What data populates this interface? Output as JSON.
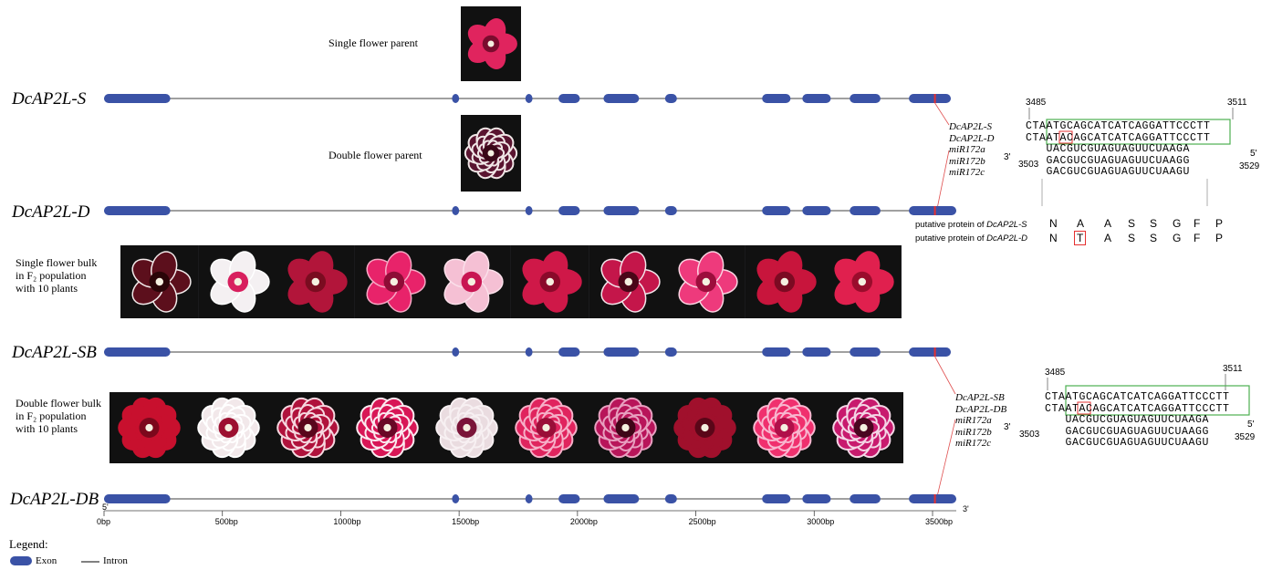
{
  "genes": [
    {
      "name": "DcAP2L-S"
    },
    {
      "name": "DcAP2L-D"
    },
    {
      "name": "DcAP2L-SB"
    },
    {
      "name": "DcAP2L-DB"
    }
  ],
  "labels": {
    "single_parent": "Single flower parent",
    "double_parent": "Double flower parent",
    "single_bulk": [
      "Single flower bulk",
      "in F₂ population",
      "with 10 plants"
    ],
    "double_bulk": [
      "Double flower bulk",
      "in F₂ population",
      "with 10 plants"
    ]
  },
  "axis": {
    "ticks": [
      "0bp",
      "500bp",
      "1000bp",
      "1500bp",
      "2000bp",
      "2500bp",
      "3000bp",
      "3500bp"
    ],
    "five_prime": "5'",
    "three_prime": "3'"
  },
  "exons_bp": [
    [
      0,
      280
    ],
    [
      1470,
      1500
    ],
    [
      1780,
      1810
    ],
    [
      1920,
      2010
    ],
    [
      2110,
      2260
    ],
    [
      2370,
      2420
    ],
    [
      2780,
      2900
    ],
    [
      2950,
      3070
    ],
    [
      3150,
      3280
    ],
    [
      3400,
      3520
    ]
  ],
  "mutation_bp": 3510,
  "alignment_top": {
    "start": "3485",
    "end": "3511",
    "mir_start": "3503",
    "mir_end": "3529",
    "three": "3'",
    "five": "5'",
    "row_names": [
      "DcAP2L-S",
      "DcAP2L-D",
      "miR172a",
      "miR172b",
      "miR172c"
    ],
    "seqs": [
      "CTAATGCAGCATCATCAGGATTCCCTT",
      "CTAATACAGCATCATCAGGATTCCCTT",
      "   UACGUCGUAGUAGUUCUAAGA",
      "   GACGUCGUAGUAGUUCUAAGG",
      "   GACGUCGUAGUAGUUCUAAGU"
    ]
  },
  "alignment_bottom": {
    "start": "3485",
    "end": "3511",
    "mir_start": "3503",
    "mir_end": "3529",
    "three": "3'",
    "five": "5'",
    "row_names": [
      "DcAP2L-SB",
      "DcAP2L-DB",
      "miR172a",
      "miR172b",
      "miR172c"
    ],
    "seqs": [
      "CTAATGCAGCATCATCAGGATTCCCTT",
      "CTAATACAGCATCATCAGGATTCCCTT",
      "   UACGUCGUAGUAGUUCUAAGA",
      "   GACGUCGUAGUAGUUCUAAGG",
      "   GACGUCGUAGUAGUUCUAAGU"
    ]
  },
  "protein": {
    "row1_label": "putative protein of ",
    "row1_gene": "DcAP2L-S",
    "row2_label": "putative protein of ",
    "row2_gene": "DcAP2L-D",
    "row1_aa": [
      "N",
      "A",
      "A",
      "S",
      "S",
      "G",
      "F",
      "P"
    ],
    "row2_aa": [
      "N",
      "T",
      "A",
      "S",
      "S",
      "G",
      "F",
      "P"
    ]
  },
  "legend": {
    "title": "Legend:",
    "exon": "Exon",
    "intron": "Intron"
  },
  "colors": {
    "exon": "#3a52a6",
    "intron": "#808080",
    "mutation": "#e53030",
    "box_green": "#4caf50",
    "box_red": "#e53030"
  },
  "flowers": {
    "single_parent": {
      "petal": "#e0245e",
      "center": "#7a0c2e",
      "edge": "#e0245e"
    },
    "double_parent": {
      "petal": "#5a1430",
      "center": "#3a0818",
      "edge": "#f0e6e6"
    },
    "single_bulk": [
      {
        "petal": "#5c0f1c",
        "center": "#2a0508",
        "edge": "#f2eaea"
      },
      {
        "petal": "#f4f0f2",
        "center": "#d81f5e",
        "edge": "#ffffff"
      },
      {
        "petal": "#b2153a",
        "center": "#7a0c20",
        "edge": "#b2153a"
      },
      {
        "petal": "#e8236a",
        "center": "#8e0c36",
        "edge": "#f6a8c4"
      },
      {
        "petal": "#f5c0d4",
        "center": "#c81552",
        "edge": "#fbe0ea"
      },
      {
        "petal": "#cf1848",
        "center": "#8a0a2a",
        "edge": "#cf1848"
      },
      {
        "petal": "#c4164a",
        "center": "#4a0618",
        "edge": "#f4e4ea"
      },
      {
        "petal": "#ee3a7c",
        "center": "#9c0e3c",
        "edge": "#fbd4e2"
      },
      {
        "petal": "#c8153c",
        "center": "#7c0a22",
        "edge": "#c8153c"
      },
      {
        "petal": "#e0204e",
        "center": "#9a0c2c",
        "edge": "#e0204e"
      }
    ],
    "double_bulk": [
      {
        "petal": "#c8102e",
        "center": "#7c081c",
        "edge": "#c8102e"
      },
      {
        "petal": "#f2e8ea",
        "center": "#9c1030",
        "edge": "#ffffff"
      },
      {
        "petal": "#b0123c",
        "center": "#5a061c",
        "edge": "#f6d8e0"
      },
      {
        "petal": "#d81656",
        "center": "#6a0826",
        "edge": "#fbeaf0"
      },
      {
        "petal": "#eadce0",
        "center": "#7a1438",
        "edge": "#f7f0f2"
      },
      {
        "petal": "#e0245e",
        "center": "#9a0e38",
        "edge": "#f6b0c8"
      },
      {
        "petal": "#b8155a",
        "center": "#3e0618",
        "edge": "#e8a0c0"
      },
      {
        "petal": "#a0102c",
        "center": "#5a0618",
        "edge": "#a0102c"
      },
      {
        "petal": "#f0306e",
        "center": "#b0104a",
        "edge": "#f8b8d0"
      },
      {
        "petal": "#c81a6e",
        "center": "#4a0620",
        "edge": "#f4d6e6"
      }
    ]
  }
}
